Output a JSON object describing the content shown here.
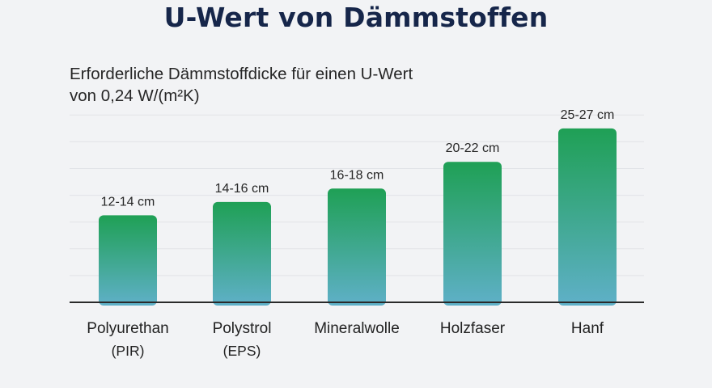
{
  "title": "U-Wert von Dämmstoffen",
  "subtitle_line1": "Erforderliche Dämmstoffdicke für einen U-Wert",
  "subtitle_line2": "von 0,24 W/(m²K)",
  "colors": {
    "bar_top": "#1fa055",
    "bar_bottom": "#5fb0c8",
    "title": "#16264a",
    "grid": "#e1e3e7",
    "axis": "#2a2a2a"
  },
  "chart_data": {
    "type": "bar",
    "title": "U-Wert von Dämmstoffen",
    "subtitle": "Erforderliche Dämmstoffdicke für einen U-Wert von 0,24 W/(m²K)",
    "categories": [
      [
        "Polyurethan",
        "(PIR)"
      ],
      [
        "Polystrol",
        "(EPS)"
      ],
      [
        "Mineralwolle"
      ],
      [
        "Holzfaser"
      ],
      [
        "Hanf"
      ]
    ],
    "values": [
      13,
      15,
      17,
      21,
      26
    ],
    "ranges": [
      [
        12,
        14
      ],
      [
        14,
        16
      ],
      [
        16,
        18
      ],
      [
        20,
        22
      ],
      [
        25,
        27
      ]
    ],
    "data_labels": [
      "12-14 cm",
      "14-16 cm",
      "16-18 cm",
      "20-22 cm",
      "25-27 cm"
    ],
    "unit": "cm",
    "ylim": [
      0,
      29
    ],
    "grid": true,
    "legend": "none"
  }
}
